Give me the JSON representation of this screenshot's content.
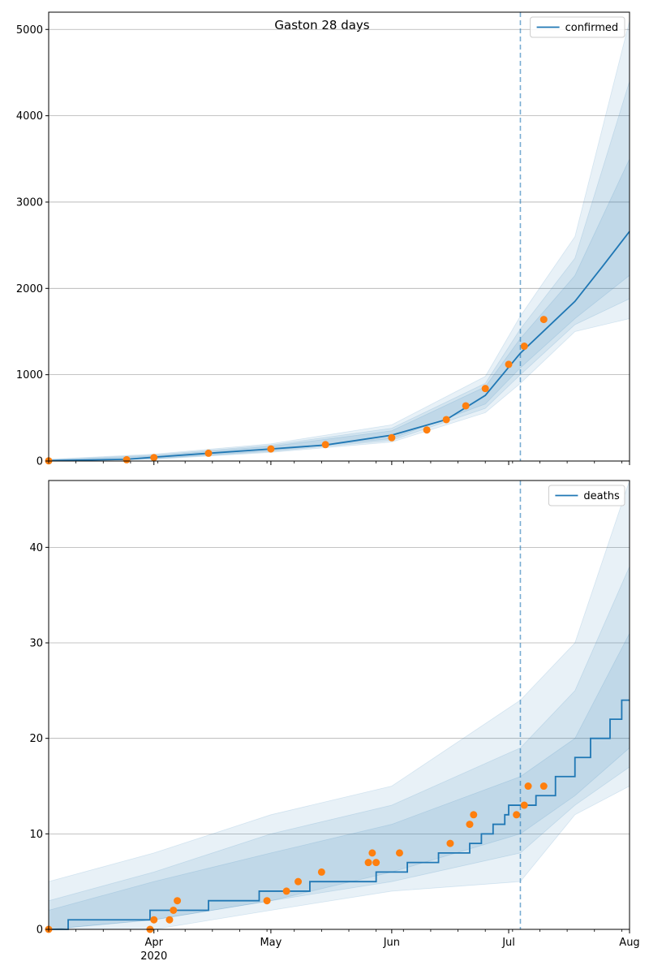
{
  "figure_title": "Gaston 28 days",
  "colors": {
    "model": "#1f77b4",
    "observed": "#ff7f0e",
    "band": "#1f77b4",
    "grid": "#b0b0b0",
    "axis": "#000000"
  },
  "x_axis": {
    "start": "2020-03-05",
    "end": "2020-08-01",
    "month_ticks": [
      {
        "date": "2020-04-01",
        "label": "Apr",
        "sublabel": "2020"
      },
      {
        "date": "2020-05-01",
        "label": "May",
        "sublabel": ""
      },
      {
        "date": "2020-06-01",
        "label": "Jun",
        "sublabel": ""
      },
      {
        "date": "2020-07-01",
        "label": "Jul",
        "sublabel": ""
      },
      {
        "date": "2020-08-01",
        "label": "Aug",
        "sublabel": ""
      }
    ],
    "forecast_start": "2020-07-04"
  },
  "chart_data": [
    {
      "type": "line",
      "panel": "top",
      "legend": {
        "label": "confirmed",
        "position": "upper right"
      },
      "ylim": [
        0,
        5200
      ],
      "yticks": [
        0,
        1000,
        2000,
        3000,
        4000,
        5000
      ],
      "grid": "y",
      "series": [
        {
          "name": "confirmed",
          "kind": "model-median",
          "points": [
            [
              "2020-03-05",
              5
            ],
            [
              "2020-03-25",
              20
            ],
            [
              "2020-04-01",
              45
            ],
            [
              "2020-04-15",
              90
            ],
            [
              "2020-05-01",
              140
            ],
            [
              "2020-05-15",
              185
            ],
            [
              "2020-06-01",
              300
            ],
            [
              "2020-06-15",
              480
            ],
            [
              "2020-06-25",
              760
            ],
            [
              "2020-07-04",
              1250
            ],
            [
              "2020-07-11",
              1550
            ],
            [
              "2020-07-18",
              1850
            ],
            [
              "2020-07-25",
              2250
            ],
            [
              "2020-08-01",
              2660
            ]
          ]
        },
        {
          "name": "observed",
          "kind": "observed",
          "points": [
            [
              "2020-03-05",
              2
            ],
            [
              "2020-03-25",
              15
            ],
            [
              "2020-04-01",
              40
            ],
            [
              "2020-04-15",
              90
            ],
            [
              "2020-05-01",
              140
            ],
            [
              "2020-05-15",
              190
            ],
            [
              "2020-06-01",
              270
            ],
            [
              "2020-06-10",
              360
            ],
            [
              "2020-06-15",
              480
            ],
            [
              "2020-06-20",
              640
            ],
            [
              "2020-06-25",
              840
            ],
            [
              "2020-07-01",
              1120
            ],
            [
              "2020-07-05",
              1330
            ],
            [
              "2020-07-10",
              1640
            ]
          ]
        }
      ],
      "bands": [
        {
          "points": [
            [
              "2020-03-05",
              0,
              20
            ],
            [
              "2020-04-01",
              20,
              80
            ],
            [
              "2020-05-01",
              100,
              200
            ],
            [
              "2020-06-01",
              220,
              420
            ],
            [
              "2020-06-25",
              560,
              980
            ],
            [
              "2020-07-04",
              900,
              1680
            ],
            [
              "2020-07-18",
              1500,
              2600
            ],
            [
              "2020-08-01",
              1650,
              5100
            ]
          ]
        },
        {
          "points": [
            [
              "2020-03-05",
              0,
              15
            ],
            [
              "2020-04-01",
              25,
              70
            ],
            [
              "2020-05-01",
              110,
              185
            ],
            [
              "2020-06-01",
              240,
              380
            ],
            [
              "2020-06-25",
              610,
              900
            ],
            [
              "2020-07-04",
              1000,
              1530
            ],
            [
              "2020-07-18",
              1580,
              2350
            ],
            [
              "2020-08-01",
              1880,
              4400
            ]
          ]
        },
        {
          "points": [
            [
              "2020-03-05",
              0,
              10
            ],
            [
              "2020-04-01",
              30,
              60
            ],
            [
              "2020-05-01",
              120,
              170
            ],
            [
              "2020-06-01",
              260,
              350
            ],
            [
              "2020-06-25",
              660,
              860
            ],
            [
              "2020-07-04",
              1080,
              1420
            ],
            [
              "2020-07-18",
              1650,
              2150
            ],
            [
              "2020-08-01",
              2150,
              3500
            ]
          ]
        }
      ]
    },
    {
      "type": "line",
      "panel": "bottom",
      "legend": {
        "label": "deaths",
        "position": "upper right"
      },
      "ylim": [
        0,
        47
      ],
      "yticks": [
        0,
        10,
        20,
        30,
        40
      ],
      "grid": "y",
      "series": [
        {
          "name": "deaths",
          "kind": "model-median-step",
          "points": [
            [
              "2020-03-05",
              0
            ],
            [
              "2020-03-10",
              1
            ],
            [
              "2020-03-31",
              2
            ],
            [
              "2020-04-15",
              3
            ],
            [
              "2020-04-28",
              4
            ],
            [
              "2020-05-11",
              5
            ],
            [
              "2020-05-28",
              6
            ],
            [
              "2020-06-05",
              7
            ],
            [
              "2020-06-13",
              8
            ],
            [
              "2020-06-21",
              9
            ],
            [
              "2020-06-24",
              10
            ],
            [
              "2020-06-27",
              11
            ],
            [
              "2020-06-30",
              12
            ],
            [
              "2020-07-01",
              13
            ],
            [
              "2020-07-08",
              14
            ],
            [
              "2020-07-13",
              16
            ],
            [
              "2020-07-18",
              18
            ],
            [
              "2020-07-22",
              20
            ],
            [
              "2020-07-27",
              22
            ],
            [
              "2020-07-30",
              24
            ],
            [
              "2020-08-01",
              24
            ]
          ]
        },
        {
          "name": "observed",
          "kind": "observed",
          "points": [
            [
              "2020-03-05",
              0
            ],
            [
              "2020-03-31",
              0
            ],
            [
              "2020-04-01",
              1
            ],
            [
              "2020-04-05",
              1
            ],
            [
              "2020-04-06",
              2
            ],
            [
              "2020-04-07",
              3
            ],
            [
              "2020-04-30",
              3
            ],
            [
              "2020-05-05",
              4
            ],
            [
              "2020-05-08",
              5
            ],
            [
              "2020-05-14",
              6
            ],
            [
              "2020-05-26",
              7
            ],
            [
              "2020-05-27",
              8
            ],
            [
              "2020-05-28",
              7
            ],
            [
              "2020-06-03",
              8
            ],
            [
              "2020-06-16",
              9
            ],
            [
              "2020-06-21",
              11
            ],
            [
              "2020-06-22",
              12
            ],
            [
              "2020-07-03",
              12
            ],
            [
              "2020-07-05",
              13
            ],
            [
              "2020-07-06",
              15
            ],
            [
              "2020-07-10",
              15
            ]
          ]
        }
      ],
      "bands": [
        {
          "points": [
            [
              "2020-03-05",
              0,
              5
            ],
            [
              "2020-04-01",
              0,
              8
            ],
            [
              "2020-05-01",
              2,
              12
            ],
            [
              "2020-06-01",
              4,
              15
            ],
            [
              "2020-07-04",
              5,
              24
            ],
            [
              "2020-07-18",
              12,
              30
            ],
            [
              "2020-08-01",
              15,
              47
            ]
          ]
        },
        {
          "points": [
            [
              "2020-03-05",
              0,
              3
            ],
            [
              "2020-04-01",
              1,
              6
            ],
            [
              "2020-05-01",
              3,
              10
            ],
            [
              "2020-06-01",
              5,
              13
            ],
            [
              "2020-07-04",
              8,
              19
            ],
            [
              "2020-07-18",
              13,
              25
            ],
            [
              "2020-08-01",
              17,
              38
            ]
          ]
        },
        {
          "points": [
            [
              "2020-03-05",
              0,
              2
            ],
            [
              "2020-04-01",
              1,
              5
            ],
            [
              "2020-05-01",
              3,
              8
            ],
            [
              "2020-06-01",
              6,
              11
            ],
            [
              "2020-07-04",
              10,
              16
            ],
            [
              "2020-07-18",
              14,
              20
            ],
            [
              "2020-08-01",
              19,
              31
            ]
          ]
        }
      ]
    }
  ]
}
